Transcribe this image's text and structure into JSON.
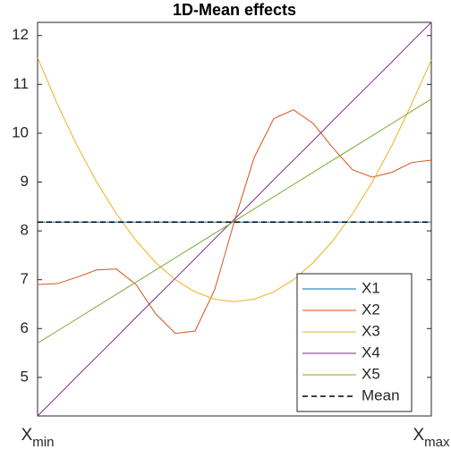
{
  "chart_data": {
    "type": "line",
    "title": "1D-Mean effects",
    "x": [
      0,
      0.05,
      0.1,
      0.15,
      0.2,
      0.25,
      0.3,
      0.35,
      0.4,
      0.45,
      0.5,
      0.55,
      0.6,
      0.65,
      0.7,
      0.75,
      0.8,
      0.85,
      0.9,
      0.95,
      1
    ],
    "xlim": [
      0,
      1
    ],
    "xticks": [
      {
        "value": 0,
        "label": "X",
        "subscript": "min"
      },
      {
        "value": 1,
        "label": "X",
        "subscript": "max"
      }
    ],
    "ylim": [
      4.21,
      12.27
    ],
    "yticks": [
      5,
      6,
      7,
      8,
      9,
      10,
      11,
      12
    ],
    "grid": false,
    "legend": "lower right",
    "series": [
      {
        "name": "X1",
        "color": "#0072bd",
        "values": [
          8.18,
          8.18,
          8.18,
          8.18,
          8.18,
          8.18,
          8.18,
          8.18,
          8.18,
          8.18,
          8.18,
          8.18,
          8.18,
          8.18,
          8.18,
          8.18,
          8.18,
          8.18,
          8.18,
          8.18,
          8.18
        ]
      },
      {
        "name": "X2",
        "color": "#d95319",
        "values": [
          6.9,
          6.92,
          7.05,
          7.2,
          7.22,
          6.9,
          6.3,
          5.9,
          5.95,
          6.8,
          8.2,
          9.5,
          10.3,
          10.48,
          10.2,
          9.7,
          9.25,
          9.1,
          9.2,
          9.4,
          9.45
        ]
      },
      {
        "name": "X3",
        "color": "#edb120",
        "values": [
          11.55,
          10.6,
          9.75,
          9.0,
          8.35,
          7.8,
          7.35,
          7.0,
          6.75,
          6.6,
          6.55,
          6.6,
          6.75,
          7.0,
          7.35,
          7.8,
          8.35,
          9.0,
          9.75,
          10.6,
          11.5
        ]
      },
      {
        "name": "X4",
        "color": "#7e2f8e",
        "values": [
          4.21,
          4.61,
          5.02,
          5.42,
          5.82,
          6.23,
          6.63,
          7.03,
          7.43,
          7.84,
          8.24,
          8.64,
          9.05,
          9.45,
          9.85,
          10.26,
          10.66,
          11.06,
          11.46,
          11.87,
          12.27
        ]
      },
      {
        "name": "X5",
        "color": "#77ac30",
        "values": [
          5.7,
          5.95,
          6.2,
          6.45,
          6.7,
          6.95,
          7.2,
          7.45,
          7.7,
          7.95,
          8.2,
          8.45,
          8.7,
          8.95,
          9.2,
          9.45,
          9.7,
          9.95,
          10.2,
          10.45,
          10.7
        ]
      },
      {
        "name": "Mean",
        "color": "#000000",
        "linestyle": "--",
        "values": [
          8.18,
          8.18,
          8.18,
          8.18,
          8.18,
          8.18,
          8.18,
          8.18,
          8.18,
          8.18,
          8.18,
          8.18,
          8.18,
          8.18,
          8.18,
          8.18,
          8.18,
          8.18,
          8.18,
          8.18,
          8.18
        ]
      }
    ]
  }
}
